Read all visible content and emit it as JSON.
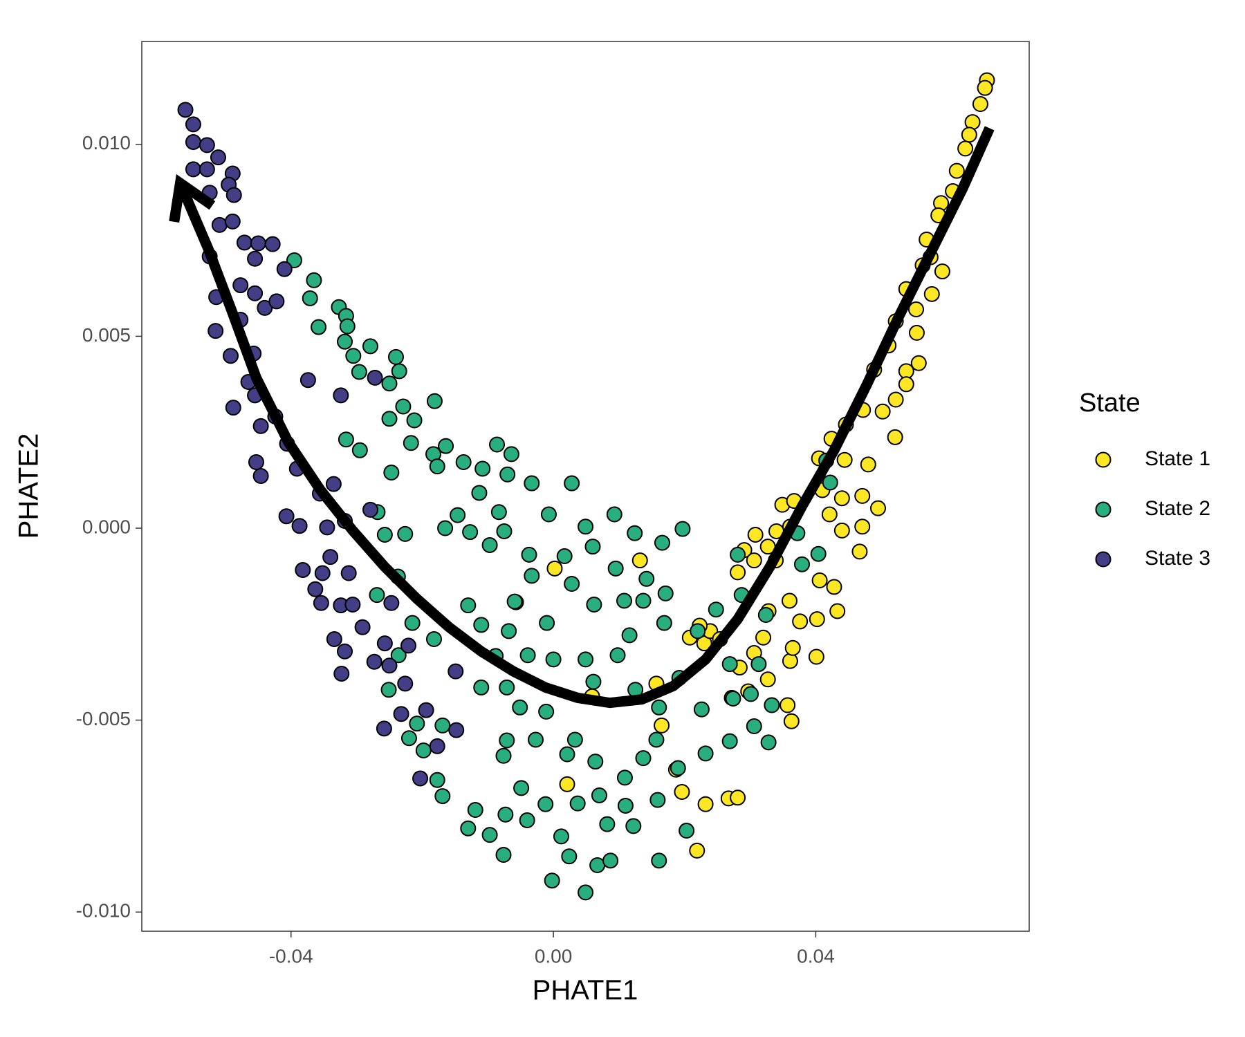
{
  "chart_data": {
    "type": "scatter",
    "x_label": "PHATE1",
    "y_label": "PHATE2",
    "xlim": [
      -0.06275,
      0.07254
    ],
    "ylim": [
      -0.0105,
      0.01268
    ],
    "xticks": [
      -0.04,
      {
        "value": 0,
        "label": "0.00"
      },
      0.04
    ],
    "yticks": [
      {
        "value": -0.01,
        "label": "-0.010"
      },
      -0.005,
      {
        "value": 0,
        "label": "0.000"
      },
      0.005,
      {
        "value": 0.01,
        "label": "0.010"
      }
    ],
    "grid": false,
    "legend_title": "State",
    "legend_position": "right",
    "series": [
      {
        "name": "State 1",
        "color": "#FDE725",
        "x": [
          0.0661,
          0.0658,
          0.0651,
          0.0639,
          0.0634,
          0.0628,
          0.0615,
          0.0609,
          0.0591,
          0.0587,
          0.0569,
          0.0575,
          0.0563,
          0.0593,
          0.0577,
          0.0538,
          0.0553,
          0.0522,
          0.0554,
          0.0511,
          0.0489,
          0.0538,
          0.0557,
          0.0538,
          0.0522,
          0.0502,
          0.0472,
          0.0446,
          0.0424,
          0.0521,
          0.048,
          0.0444,
          0.0405,
          0.041,
          0.044,
          0.0471,
          0.0495,
          0.044,
          0.0467,
          0.0471,
          0.0421,
          0.0349,
          0.0367,
          0.0361,
          0.034,
          0.0308,
          0.0327,
          0.0291,
          0.0306,
          0.0281,
          0.0339,
          0.036,
          0.0328,
          0.0376,
          0.0402,
          0.0433,
          0.0428,
          0.0406,
          0.0401,
          0.0361,
          0.0365,
          0.032,
          0.0306,
          0.0284,
          0.0327,
          0.0297,
          0.0272,
          0.023,
          0.0208,
          0.0239,
          0.0223,
          0.0254,
          0.0357,
          0.0363,
          0.0165,
          0.0187,
          0.0196,
          0.0232,
          0.0267,
          0.0281,
          0.0219,
          0.0021,
          0.0002,
          0.0132,
          0.0157,
          -0.0057,
          0.0059
        ],
        "y": [
          0.01167,
          0.01147,
          0.01105,
          0.01058,
          0.01025,
          0.00989,
          0.00931,
          0.00878,
          0.00847,
          0.00815,
          0.00752,
          0.00706,
          0.00685,
          0.00669,
          0.0061,
          0.00623,
          0.0057,
          0.00539,
          0.00509,
          0.00476,
          0.00413,
          0.00409,
          0.0043,
          0.00375,
          0.00335,
          0.00304,
          0.00308,
          0.0027,
          0.00233,
          0.00237,
          0.00166,
          0.00178,
          0.00182,
          0.00099,
          0.00078,
          0.00084,
          0.00052,
          -6e-05,
          -0.00061,
          4e-05,
          0.00036,
          0.00061,
          0.00071,
          4e-05,
          -8e-05,
          -0.00017,
          -0.00048,
          -0.00057,
          -0.00084,
          -0.00115,
          -0.00084,
          -0.00189,
          -0.00216,
          -0.00243,
          -0.00237,
          -0.00216,
          -0.00153,
          -0.00136,
          -0.00335,
          -0.00346,
          -0.00312,
          -0.00285,
          -0.00325,
          -0.00363,
          -0.00394,
          -0.00425,
          -0.00442,
          -0.003,
          -0.00285,
          -0.00268,
          -0.00254,
          -0.00289,
          -0.00461,
          -0.00503,
          -0.00514,
          -0.00629,
          -0.00687,
          -0.00719,
          -0.00704,
          -0.00702,
          -0.0084,
          -0.00667,
          -0.00105,
          -0.00084,
          -0.00405,
          -0.00193,
          -0.00438
        ]
      },
      {
        "name": "State 2",
        "color": "#29AF7F",
        "x": [
          -0.0395,
          -0.0365,
          -0.0371,
          -0.0327,
          -0.0316,
          -0.0358,
          -0.0314,
          -0.0318,
          -0.0279,
          -0.024,
          -0.0305,
          -0.0296,
          -0.0235,
          -0.025,
          -0.0229,
          -0.0181,
          -0.025,
          -0.0212,
          -0.0217,
          -0.0316,
          -0.0295,
          -0.0247,
          -0.0183,
          -0.0164,
          -0.0177,
          -0.0137,
          -0.0108,
          -0.0086,
          -0.0064,
          -0.007,
          -0.0033,
          0.0028,
          -0.0113,
          -0.0083,
          -0.0146,
          -0.0165,
          -0.0127,
          -0.0075,
          -0.0007,
          0.0049,
          0.0093,
          0.0124,
          0.0166,
          0.0197,
          -0.0097,
          -0.0037,
          0.0017,
          0.006,
          0.0095,
          0.0142,
          0.0171,
          -0.0033,
          0.0028,
          0.0062,
          0.0108,
          0.0137,
          0.0169,
          0.022,
          0.0248,
          -0.0059,
          -0.011,
          -0.0068,
          -0.001,
          -0.0039,
          -0.0088,
          -0.011,
          -0.0071,
          -0.0051,
          0,
          0.0049,
          0.0098,
          0.0116,
          0.0061,
          0.0125,
          0.0161,
          0.0192,
          0.0226,
          0.0274,
          0.0301,
          0.0306,
          0.0328,
          0.0269,
          0.0232,
          0.019,
          0.0157,
          0.0137,
          0.0109,
          0.0064,
          0.0021,
          0.0033,
          -0.0011,
          -0.0027,
          -0.0071,
          -0.0076,
          -0.0049,
          -0.0073,
          -0.004,
          -0.0012,
          0.0012,
          0.0024,
          0.0049,
          0.0067,
          0.0087,
          0.0082,
          0.0122,
          0.0161,
          0.0203,
          0.0159,
          0.011,
          0.007,
          0.0037,
          -0.0002,
          -0.0076,
          -0.0097,
          -0.013,
          -0.0119,
          -0.0169,
          -0.0177,
          -0.0198,
          -0.022,
          -0.0169,
          -0.0208,
          -0.0251,
          -0.0236,
          -0.0215,
          -0.0182,
          -0.013,
          -0.0237,
          -0.0269,
          -0.0257,
          -0.0268,
          -0.0226,
          0.0281,
          0.0287,
          0.0324,
          0.0313,
          0.0333,
          0.0379,
          0.0404,
          0.0416,
          0.0422,
          0.0372,
          0.0269
        ],
        "y": [
          0.00698,
          0.00646,
          0.00599,
          0.00576,
          0.00553,
          0.00524,
          0.00526,
          0.00486,
          0.00474,
          0.00446,
          0.00449,
          0.00407,
          0.00409,
          0.00377,
          0.00317,
          0.00331,
          0.00285,
          0.00281,
          0.00222,
          0.00231,
          0.00203,
          0.00145,
          0.00193,
          0.00214,
          0.00161,
          0.00172,
          0.00155,
          0.00218,
          0.00193,
          0.0014,
          0.00117,
          0.00117,
          0.00092,
          0.00042,
          0.00034,
          0,
          -0.0001,
          -8e-05,
          0.00036,
          4e-05,
          0.00036,
          -0.00013,
          -0.00038,
          -2e-05,
          -0.00044,
          -0.00069,
          -0.00073,
          -0.00048,
          -0.00105,
          -0.00132,
          -0.0017,
          -0.00124,
          -0.00145,
          -0.00199,
          -0.00189,
          -0.00189,
          -0.00247,
          -0.00268,
          -0.00212,
          -0.00191,
          -0.00252,
          -0.00268,
          -0.00247,
          -0.00331,
          -0.00333,
          -0.00415,
          -0.00415,
          -0.00467,
          -0.00342,
          -0.00342,
          -0.00331,
          -0.00279,
          -0.004,
          -0.00421,
          -0.00467,
          -0.0039,
          -0.00472,
          -0.00444,
          -0.00432,
          -0.00516,
          -0.00558,
          -0.00555,
          -0.00587,
          -0.00625,
          -0.00551,
          -0.00599,
          -0.0065,
          -0.00608,
          -0.00589,
          -0.00551,
          -0.00478,
          -0.00551,
          -0.00553,
          -0.00593,
          -0.00677,
          -0.00746,
          -0.00761,
          -0.00719,
          -0.00803,
          -0.00855,
          -0.00949,
          -0.00878,
          -0.00866,
          -0.00771,
          -0.00776,
          -0.00866,
          -0.00788,
          -0.00708,
          -0.00723,
          -0.00696,
          -0.00717,
          -0.00918,
          -0.00851,
          -0.00799,
          -0.00782,
          -0.00734,
          -0.00698,
          -0.00656,
          -0.00579,
          -0.00547,
          -0.00514,
          -0.00509,
          -0.00421,
          -0.00331,
          -0.00247,
          -0.00289,
          -0.00201,
          -0.00126,
          -0.00174,
          -0.00017,
          0.00042,
          -0.00015,
          -0.00069,
          -0.00174,
          -0.00226,
          -0.00354,
          -0.00461,
          -0.00094,
          -0.00067,
          0.00176,
          0.00119,
          -0.00013,
          -0.00354
        ]
      },
      {
        "name": "State 3",
        "color": "#433E85",
        "x": [
          -0.0561,
          -0.0549,
          -0.0549,
          -0.0528,
          -0.0511,
          -0.0549,
          -0.0528,
          -0.0489,
          -0.0495,
          -0.0524,
          -0.0487,
          -0.0509,
          -0.0489,
          -0.0471,
          -0.045,
          -0.0428,
          -0.0524,
          -0.0455,
          -0.0514,
          -0.0477,
          -0.0455,
          -0.044,
          -0.041,
          -0.0422,
          -0.0515,
          -0.0492,
          -0.0477,
          -0.0457,
          -0.0465,
          -0.0488,
          -0.0455,
          -0.0424,
          -0.0446,
          -0.0406,
          -0.0453,
          -0.0446,
          -0.0391,
          -0.0356,
          -0.0407,
          -0.0387,
          -0.0345,
          -0.0382,
          -0.0352,
          -0.034,
          -0.0312,
          -0.0363,
          -0.0354,
          -0.0324,
          -0.0306,
          -0.0334,
          -0.0318,
          -0.0291,
          -0.0247,
          -0.0257,
          -0.0273,
          -0.0323,
          -0.025,
          -0.0221,
          -0.0226,
          -0.0232,
          -0.0258,
          -0.0194,
          -0.0177,
          -0.0148,
          -0.0149,
          -0.0203,
          -0.0279,
          -0.0318,
          -0.0335,
          -0.0374,
          -0.0324,
          -0.0272
        ],
        "y": [
          0.0109,
          0.01052,
          0.01006,
          0.00998,
          0.00966,
          0.00935,
          0.00935,
          0.00924,
          0.00895,
          0.00874,
          0.00868,
          0.0079,
          0.00799,
          0.00744,
          0.00742,
          0.0074,
          0.00708,
          0.00702,
          0.00602,
          0.00633,
          0.00612,
          0.00574,
          0.00675,
          0.00591,
          0.00514,
          0.00449,
          0.00543,
          0.00455,
          0.00381,
          0.00314,
          0.00346,
          0.00291,
          0.00266,
          0.0022,
          0.00172,
          0.00136,
          0.00155,
          0.0009,
          0.00031,
          6e-05,
          2e-05,
          -0.00109,
          -0.00117,
          -0.00075,
          -0.00117,
          -0.00159,
          -0.00195,
          -0.00201,
          -0.00199,
          -0.00289,
          -0.00321,
          -0.00258,
          -0.00195,
          -0.003,
          -0.00348,
          -0.00379,
          -0.00358,
          -0.00306,
          -0.00405,
          -0.00484,
          -0.00522,
          -0.00474,
          -0.00568,
          -0.00526,
          -0.00373,
          -0.00652,
          0.00048,
          0.00019,
          0.00115,
          0.00386,
          0.00346,
          0.00392
        ]
      }
    ],
    "trajectory": {
      "color": "#000000",
      "x": [
        0.0665,
        0.0624,
        0.0575,
        0.0526,
        0.0477,
        0.0428,
        0.0379,
        0.033,
        0.0281,
        0.0232,
        0.0183,
        0.0135,
        0.0086,
        0.0037,
        -0.0012,
        -0.0061,
        -0.011,
        -0.0159,
        -0.0208,
        -0.0257,
        -0.0306,
        -0.0355,
        -0.0404,
        -0.0453,
        -0.0489,
        -0.0526,
        -0.0569
      ],
      "y": [
        0.01042,
        0.00885,
        0.00717,
        0.00549,
        0.00371,
        0.00203,
        0.00057,
        -0.00101,
        -0.00237,
        -0.00342,
        -0.00411,
        -0.00446,
        -0.00455,
        -0.00442,
        -0.00415,
        -0.00373,
        -0.00321,
        -0.00258,
        -0.00184,
        -0.00101,
        -6e-05,
        0.00099,
        0.00224,
        0.00392,
        0.0056,
        0.00727,
        0.00899
      ]
    }
  }
}
